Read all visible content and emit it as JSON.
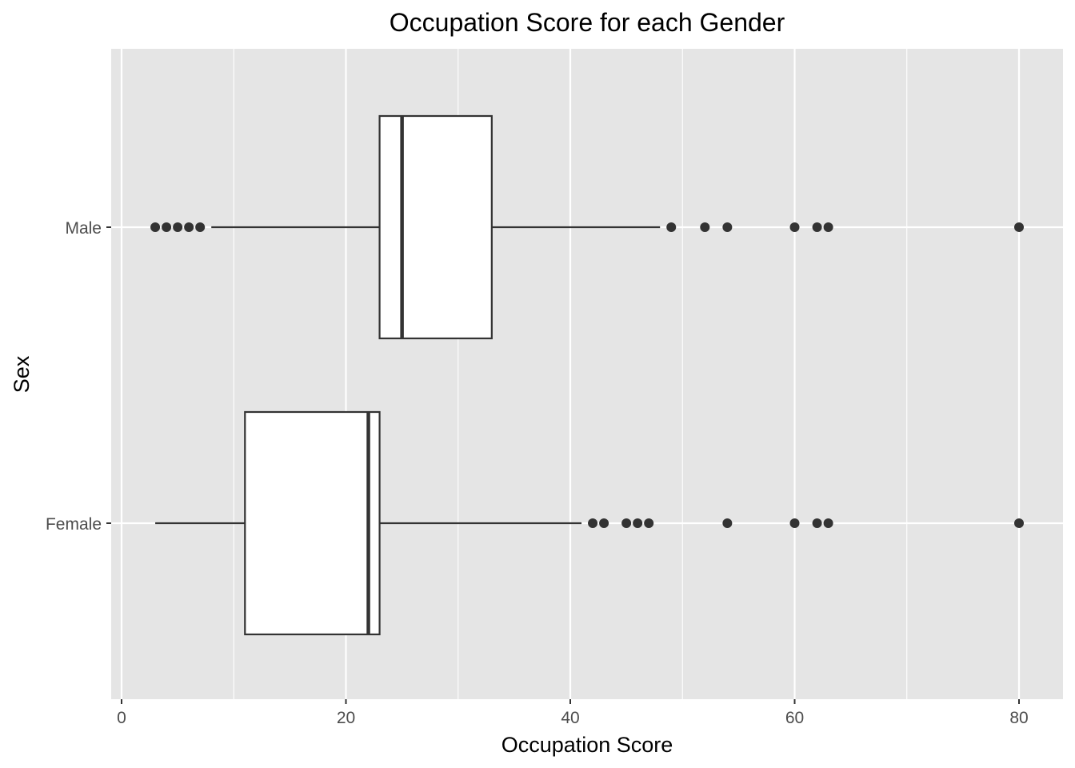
{
  "chart_data": {
    "type": "boxplot",
    "orientation": "horizontal",
    "title": "Occupation Score for each Gender",
    "xlabel": "Occupation Score",
    "ylabel": "Sex",
    "xlim": [
      -1,
      84
    ],
    "x_ticks": [
      0,
      20,
      40,
      60,
      80
    ],
    "x_minor_ticks": [
      10,
      30,
      50,
      70
    ],
    "grid": true,
    "legend": "none",
    "categories": [
      "Male",
      "Female"
    ],
    "series": [
      {
        "category": "Male",
        "whisker_low": 8,
        "q1": 23,
        "median": 25,
        "q3": 33,
        "whisker_high": 48,
        "outliers": [
          3,
          4,
          5,
          6,
          7,
          49,
          52,
          54,
          60,
          62,
          63,
          80
        ]
      },
      {
        "category": "Female",
        "whisker_low": 3,
        "q1": 11,
        "median": 22,
        "q3": 23,
        "whisker_high": 41,
        "outliers": [
          42,
          43,
          45,
          46,
          47,
          54,
          60,
          62,
          63,
          80
        ]
      }
    ],
    "colors": {
      "panel_background": "#e5e5e5",
      "grid": "#ffffff",
      "box_fill": "#ffffff",
      "box_stroke": "#333333",
      "outlier": "#333333",
      "tick_text": "#4d4d4d"
    }
  }
}
